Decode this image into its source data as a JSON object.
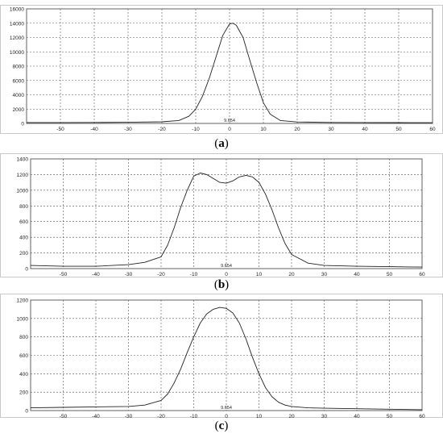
{
  "chart_data": [
    {
      "type": "line",
      "panel_label": "a",
      "xlim": [
        -60,
        60
      ],
      "ylim": [
        0,
        16000
      ],
      "xticks": [
        -50,
        -40,
        -30,
        -20,
        -10,
        0,
        10,
        20,
        30,
        40,
        50,
        60
      ],
      "yticks": [
        0,
        2000,
        4000,
        6000,
        8000,
        10000,
        12000,
        14000,
        16000
      ],
      "grid": true,
      "annotation": "9.654",
      "series": [
        {
          "x": [
            -60,
            -50,
            -40,
            -30,
            -20,
            -15,
            -12,
            -10,
            -8,
            -6,
            -4,
            -2,
            0,
            1,
            2,
            4,
            6,
            8,
            10,
            12,
            15,
            20,
            30,
            40,
            50,
            60
          ],
          "y": [
            120,
            120,
            130,
            160,
            220,
            400,
            1000,
            2000,
            3800,
            6300,
            9300,
            12300,
            13900,
            14000,
            13700,
            12000,
            8800,
            5700,
            2900,
            1300,
            400,
            200,
            140,
            120,
            110,
            100
          ]
        }
      ]
    },
    {
      "type": "line",
      "panel_label": "b",
      "xlim": [
        -60,
        60
      ],
      "ylim": [
        0,
        1400
      ],
      "xticks": [
        -50,
        -40,
        -30,
        -20,
        -10,
        0,
        10,
        20,
        30,
        40,
        50,
        60
      ],
      "yticks": [
        0,
        200,
        400,
        600,
        800,
        1000,
        1200,
        1400
      ],
      "grid": true,
      "annotation": "9.654",
      "series": [
        {
          "x": [
            -60,
            -50,
            -40,
            -30,
            -25,
            -20,
            -18,
            -16,
            -14,
            -12,
            -10,
            -8,
            -6,
            -4,
            -2,
            0,
            2,
            4,
            6,
            8,
            10,
            12,
            14,
            16,
            18,
            20,
            25,
            30,
            40,
            50,
            60
          ],
          "y": [
            40,
            30,
            30,
            50,
            80,
            150,
            300,
            520,
            780,
            1000,
            1180,
            1220,
            1200,
            1150,
            1100,
            1090,
            1120,
            1170,
            1190,
            1170,
            1100,
            950,
            750,
            520,
            320,
            180,
            70,
            40,
            30,
            25,
            20
          ]
        }
      ]
    },
    {
      "type": "line",
      "panel_label": "c",
      "xlim": [
        -60,
        60
      ],
      "ylim": [
        0,
        1200
      ],
      "xticks": [
        -50,
        -40,
        -30,
        -20,
        -10,
        0,
        10,
        20,
        30,
        40,
        50,
        60
      ],
      "yticks": [
        0,
        200,
        400,
        600,
        800,
        1000,
        1200
      ],
      "grid": true,
      "annotation": "9.654",
      "series": [
        {
          "x": [
            -60,
            -50,
            -40,
            -30,
            -25,
            -20,
            -18,
            -16,
            -14,
            -12,
            -10,
            -8,
            -6,
            -4,
            -2,
            0,
            2,
            4,
            6,
            8,
            10,
            12,
            14,
            16,
            18,
            20,
            25,
            30,
            40,
            50,
            60
          ],
          "y": [
            30,
            35,
            40,
            45,
            60,
            110,
            180,
            300,
            450,
            630,
            800,
            950,
            1050,
            1100,
            1120,
            1110,
            1060,
            950,
            780,
            580,
            400,
            250,
            150,
            90,
            60,
            45,
            30,
            25,
            20,
            15,
            10
          ]
        }
      ]
    }
  ],
  "captions": [
    {
      "open": "(",
      "label": "a",
      "close": ")"
    },
    {
      "open": "(",
      "label": "b",
      "close": ")"
    },
    {
      "open": "(",
      "label": "c",
      "close": ")"
    }
  ]
}
